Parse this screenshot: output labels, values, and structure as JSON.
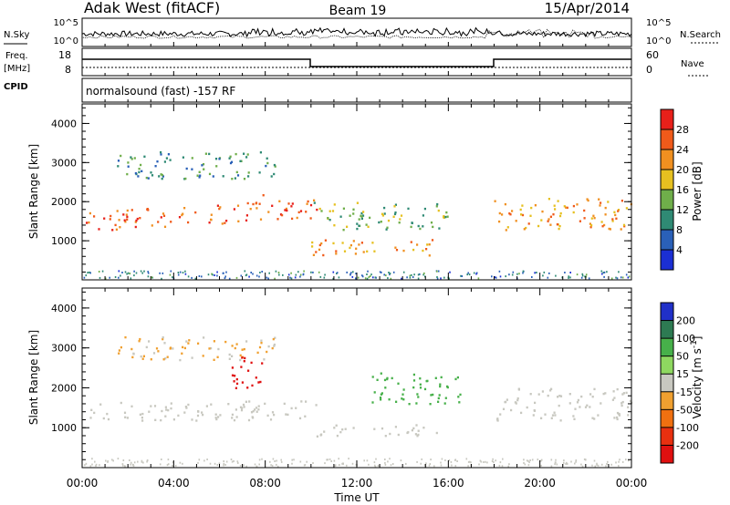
{
  "header": {
    "station": "Adak West (fitACF)",
    "beam": "Beam 19",
    "date": "15/Apr/2014"
  },
  "summary_panels": {
    "nsky": {
      "label": "N.Sky",
      "ticks": [
        "10^5",
        "10^0"
      ]
    },
    "nsearch": {
      "label": "N.Search",
      "ticks": [
        "10^5",
        "10^0"
      ]
    },
    "freq": {
      "label_line1": "Freq.",
      "label_line2": "[MHz]",
      "ticks": [
        "18",
        "8"
      ]
    },
    "nave": {
      "label": "Nave",
      "ticks": [
        "60",
        "0"
      ]
    },
    "cpid": {
      "label": "CPID",
      "text": "normalsound (fast) -157 RF"
    }
  },
  "chart_data": [
    {
      "type": "heatmap",
      "title": "",
      "xlabel": "Time UT",
      "ylabel": "Slant Range [km]",
      "xlim": [
        0,
        24
      ],
      "ylim": [
        0,
        4500
      ],
      "x_ticks": [
        "00:00",
        "04:00",
        "08:00",
        "12:00",
        "16:00",
        "20:00",
        "00:00"
      ],
      "y_ticks": [
        "1000",
        "2000",
        "3000",
        "4000"
      ],
      "colorbar": {
        "label": "Power [dB]",
        "ticks": [
          "4",
          "8",
          "12",
          "16",
          "20",
          "24",
          "28"
        ],
        "colors": [
          "#1b2fd4",
          "#2a60b8",
          "#2f8a74",
          "#6fae4a",
          "#e6c020",
          "#f09020",
          "#f05a1a",
          "#e8201a"
        ]
      },
      "scatter_regions": [
        {
          "name": "lower band",
          "t": [
            0,
            10.3
          ],
          "range_km": [
            1250,
            1750
          ],
          "level": 24
        },
        {
          "name": "upper echoes",
          "t": [
            1.5,
            8.5
          ],
          "range_km": [
            2600,
            3300
          ],
          "level": 8
        },
        {
          "name": "patch 08:00",
          "t": [
            7,
            8
          ],
          "range_km": [
            1950,
            2200
          ],
          "level": 28
        },
        {
          "name": "lower arc",
          "t": [
            10,
            15.5
          ],
          "range_km": [
            650,
            1050
          ],
          "level": 20
        },
        {
          "name": "mid band",
          "t": [
            10,
            16
          ],
          "range_km": [
            1300,
            2000
          ],
          "level": 12
        },
        {
          "name": "evening band",
          "t": [
            18,
            24
          ],
          "range_km": [
            1300,
            2100
          ],
          "level": 20
        }
      ]
    },
    {
      "type": "heatmap",
      "title": "",
      "xlabel": "Time UT",
      "ylabel": "Slant Range [km]",
      "xlim": [
        0,
        24
      ],
      "ylim": [
        0,
        4500
      ],
      "x_ticks": [
        "00:00",
        "04:00",
        "08:00",
        "12:00",
        "16:00",
        "20:00",
        "00:00"
      ],
      "y_ticks": [
        "1000",
        "2000",
        "3000",
        "4000"
      ],
      "colorbar": {
        "label": "Velocity [m s^-1]",
        "ticks": [
          "200",
          "100",
          "50",
          "15",
          "-15",
          "-50",
          "-100",
          "-200"
        ],
        "colors": [
          "#2030c8",
          "#2d7a52",
          "#47b04a",
          "#8ed860",
          "#c8c8c0",
          "#f0a030",
          "#f07010",
          "#e83010",
          "#e01010"
        ]
      },
      "scatter_regions": [
        {
          "name": "ground scatter band",
          "t": [
            0,
            10.3
          ],
          "range_km": [
            1200,
            1700
          ],
          "velocity": 0
        },
        {
          "name": "upper echoes",
          "t": [
            1.5,
            8.5
          ],
          "range_km": [
            2700,
            3300
          ],
          "velocity": -20
        },
        {
          "name": "patch 07:30",
          "t": [
            6.5,
            8
          ],
          "range_km": [
            2000,
            2800
          ],
          "velocity": -200
        },
        {
          "name": "lower arc",
          "t": [
            10,
            15.5
          ],
          "range_km": [
            800,
            1100
          ],
          "velocity": 0
        },
        {
          "name": "green flow",
          "t": [
            12.5,
            16.5
          ],
          "range_km": [
            1600,
            2400
          ],
          "velocity": 50
        },
        {
          "name": "evening band",
          "t": [
            18,
            24
          ],
          "range_km": [
            1200,
            2000
          ],
          "velocity": 0
        }
      ]
    }
  ]
}
